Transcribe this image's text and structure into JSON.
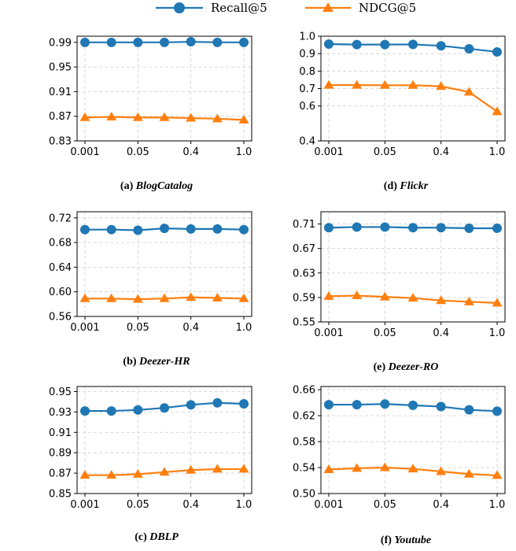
{
  "legend": [
    {
      "label": "Recall@5",
      "color": "#1f77b4",
      "marker": "circle"
    },
    {
      "label": "NDCG@5",
      "color": "#ff7f0e",
      "marker": "triangle"
    }
  ],
  "chart_data": [
    {
      "type": "line",
      "caption_prefix": "(a)",
      "caption_name": "BlogCatalog",
      "x": [
        "0.001",
        "",
        "0.05",
        "",
        "0.4",
        "",
        "1.0"
      ],
      "xticks": [
        "0.001",
        "0.05",
        "0.4",
        "1.0"
      ],
      "yticks": [
        "0.83",
        "0.87",
        "0.91",
        "0.95",
        "0.99"
      ],
      "ylim": [
        0.83,
        1.0
      ],
      "grid": true,
      "series": [
        {
          "name": "Recall@5",
          "values": [
            0.99,
            0.99,
            0.99,
            0.99,
            0.991,
            0.99,
            0.99
          ]
        },
        {
          "name": "NDCG@5",
          "values": [
            0.868,
            0.869,
            0.868,
            0.868,
            0.867,
            0.866,
            0.864
          ]
        }
      ]
    },
    {
      "type": "line",
      "caption_prefix": "(d)",
      "caption_name": "Flickr",
      "x": [
        "0.001",
        "",
        "0.05",
        "",
        "0.4",
        "",
        "1.0"
      ],
      "xticks": [
        "0.001",
        "0.05",
        "0.4",
        "1.0"
      ],
      "yticks": [
        "0.4",
        "0.6",
        "0.7",
        "0.8",
        "0.9",
        "1.0"
      ],
      "ylim": [
        0.4,
        1.0
      ],
      "grid": true,
      "series": [
        {
          "name": "Recall@5",
          "values": [
            0.955,
            0.952,
            0.952,
            0.953,
            0.945,
            0.928,
            0.91
          ]
        },
        {
          "name": "NDCG@5",
          "values": [
            0.72,
            0.72,
            0.719,
            0.719,
            0.713,
            0.68,
            0.568
          ]
        }
      ]
    },
    {
      "type": "line",
      "caption_prefix": "(b)",
      "caption_name": "Deezer-HR",
      "x": [
        "0.001",
        "",
        "0.05",
        "",
        "0.4",
        "",
        "1.0"
      ],
      "xticks": [
        "0.001",
        "0.05",
        "0.4",
        "1.0"
      ],
      "yticks": [
        "0.56",
        "0.60",
        "0.64",
        "0.68",
        "0.72"
      ],
      "ylim": [
        0.56,
        0.73
      ],
      "grid": true,
      "series": [
        {
          "name": "Recall@5",
          "values": [
            0.701,
            0.701,
            0.7,
            0.703,
            0.702,
            0.702,
            0.701
          ]
        },
        {
          "name": "NDCG@5",
          "values": [
            0.589,
            0.589,
            0.588,
            0.589,
            0.591,
            0.59,
            0.589
          ]
        }
      ]
    },
    {
      "type": "line",
      "caption_prefix": "(e)",
      "caption_name": "Deezer-RO",
      "x": [
        "0.001",
        "",
        "0.05",
        "",
        "0.4",
        "",
        "1.0"
      ],
      "xticks": [
        "0.001",
        "0.05",
        "0.4",
        "1.0"
      ],
      "yticks": [
        "0.55",
        "0.59",
        "0.63",
        "0.67",
        "0.71"
      ],
      "ylim": [
        0.55,
        0.73
      ],
      "grid": true,
      "series": [
        {
          "name": "Recall@5",
          "values": [
            0.704,
            0.705,
            0.705,
            0.704,
            0.704,
            0.703,
            0.703
          ]
        },
        {
          "name": "NDCG@5",
          "values": [
            0.592,
            0.593,
            0.591,
            0.589,
            0.585,
            0.583,
            0.581
          ]
        }
      ]
    },
    {
      "type": "line",
      "caption_prefix": "(c)",
      "caption_name": "DBLP",
      "x": [
        "0.001",
        "",
        "0.05",
        "",
        "0.4",
        "",
        "1.0"
      ],
      "xticks": [
        "0.001",
        "0.05",
        "0.4",
        "1.0"
      ],
      "yticks": [
        "0.85",
        "0.87",
        "0.89",
        "0.91",
        "0.93",
        "0.95"
      ],
      "ylim": [
        0.85,
        0.955
      ],
      "grid": true,
      "series": [
        {
          "name": "Recall@5",
          "values": [
            0.931,
            0.931,
            0.932,
            0.934,
            0.937,
            0.939,
            0.938
          ]
        },
        {
          "name": "NDCG@5",
          "values": [
            0.868,
            0.868,
            0.869,
            0.871,
            0.873,
            0.874,
            0.874
          ]
        }
      ]
    },
    {
      "type": "line",
      "caption_prefix": "(f)",
      "caption_name": "Youtube",
      "x": [
        "0.001",
        "",
        "0.05",
        "",
        "0.4",
        "",
        "1.0"
      ],
      "xticks": [
        "0.001",
        "0.05",
        "0.4",
        "1.0"
      ],
      "yticks": [
        "0.50",
        "0.54",
        "0.58",
        "0.62",
        "0.66"
      ],
      "ylim": [
        0.5,
        0.665
      ],
      "grid": true,
      "series": [
        {
          "name": "Recall@5",
          "values": [
            0.637,
            0.637,
            0.638,
            0.636,
            0.634,
            0.629,
            0.627
          ]
        },
        {
          "name": "NDCG@5",
          "values": [
            0.537,
            0.539,
            0.54,
            0.538,
            0.534,
            0.53,
            0.528
          ]
        }
      ]
    }
  ]
}
